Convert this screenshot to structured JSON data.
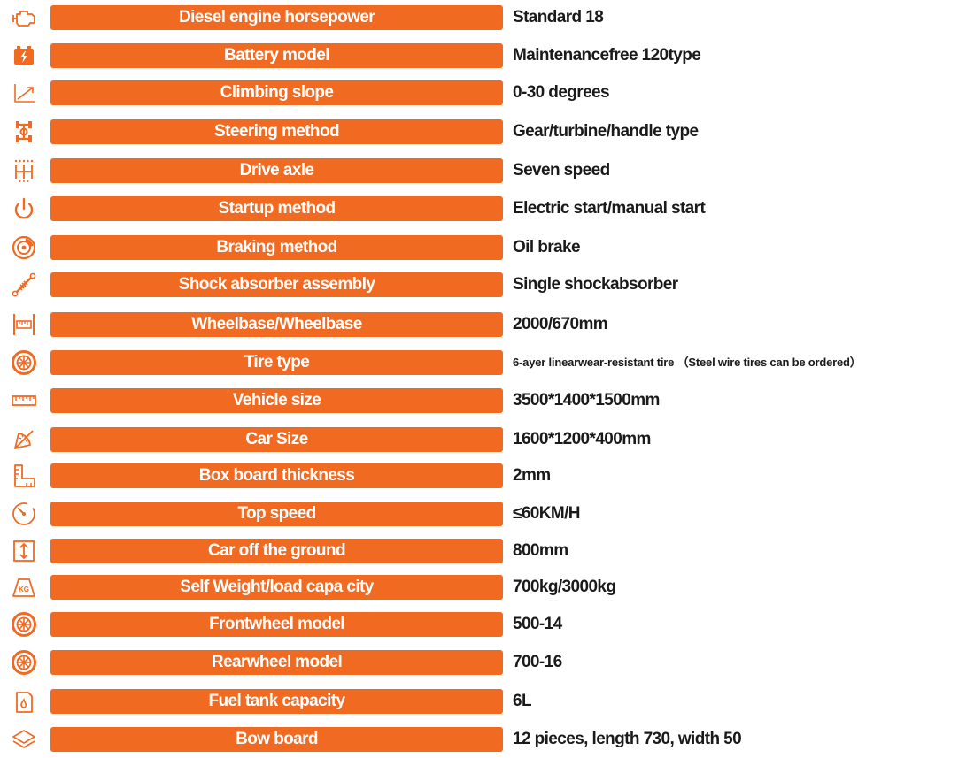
{
  "accent_color": "#f16a22",
  "rows": [
    {
      "icon": "engine-icon",
      "label": "Diesel engine horsepower",
      "value": "Standard 18"
    },
    {
      "icon": "battery-icon",
      "label": "Battery model",
      "value": "Maintenancefree 120type"
    },
    {
      "icon": "slope-icon",
      "label": "Climbing slope",
      "value": "0-30 degrees"
    },
    {
      "icon": "steering-axle-icon",
      "label": "Steering method",
      "value": "Gear/turbine/handle type"
    },
    {
      "icon": "gear-shift-icon",
      "label": "Drive axle",
      "value": "Seven speed"
    },
    {
      "icon": "power-icon",
      "label": "Startup method",
      "value": "Electric start/manual start"
    },
    {
      "icon": "brake-disc-icon",
      "label": "Braking method",
      "value": "Oil brake"
    },
    {
      "icon": "shock-absorber-icon",
      "label": "Shock absorber assembly",
      "value": "Single shockabsorber"
    },
    {
      "icon": "wheelbase-icon",
      "label": "Wheelbase/Wheelbase",
      "value": "2000/670mm"
    },
    {
      "icon": "tire-icon",
      "label": "Tire type",
      "value": "6-ayer linearwear-resistant tire （Steel wire tires can be ordered）"
    },
    {
      "icon": "ruler-icon",
      "label": "Vehicle size",
      "value": "3500*1400*1500mm"
    },
    {
      "icon": "protractor-icon",
      "label": "Car Size",
      "value": "1600*1200*400mm"
    },
    {
      "icon": "l-ruler-icon",
      "label": "Box board thickness",
      "value": "2mm"
    },
    {
      "icon": "speedometer-icon",
      "label": "Top speed",
      "value": "≤60KM/H"
    },
    {
      "icon": "height-icon",
      "label": "Car off the ground",
      "value": "800mm"
    },
    {
      "icon": "weight-icon",
      "label": "Self  Weight/load capa city",
      "value": "700kg/3000kg"
    },
    {
      "icon": "tire-icon",
      "label": "Frontwheel model",
      "value": "500-14"
    },
    {
      "icon": "tire-icon",
      "label": "Rearwheel model",
      "value": "700-16"
    },
    {
      "icon": "fuel-tank-icon",
      "label": "Fuel tank capacity",
      "value": "6L"
    },
    {
      "icon": "layers-icon",
      "label": "Bow board",
      "value": "12 pieces, length 730, width 50"
    }
  ],
  "icon_text": {
    "battery_bolt": "⚡",
    "weight_label": "KG"
  }
}
